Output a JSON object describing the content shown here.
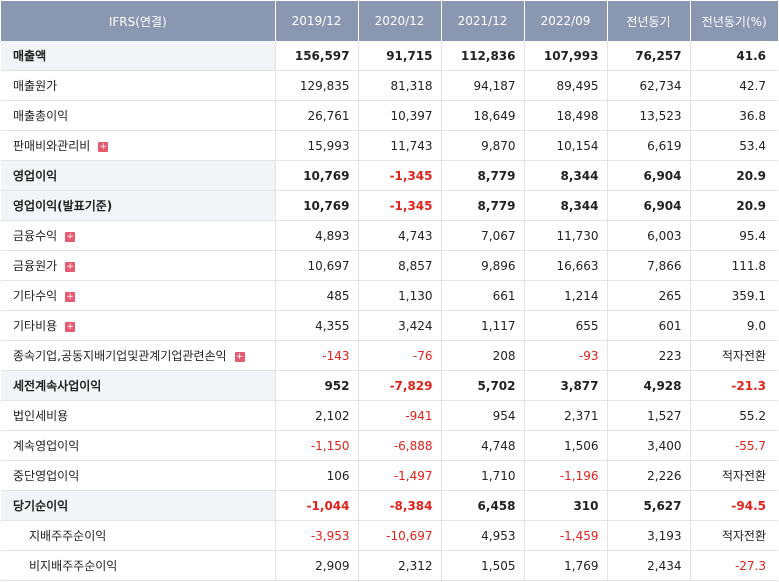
{
  "header": {
    "first": "IFRS(연결)",
    "cols": [
      "2019/12",
      "2020/12",
      "2021/12",
      "2022/09",
      "전년동기",
      "전년동기(%)"
    ]
  },
  "rows": [
    {
      "label": "매출액",
      "main": true,
      "expand": false,
      "sub": false,
      "values": [
        "156,597",
        "91,715",
        "112,836",
        "107,993",
        "76,257",
        "41.6"
      ],
      "neg": [
        false,
        false,
        false,
        false,
        false,
        false
      ]
    },
    {
      "label": "매출원가",
      "main": false,
      "expand": false,
      "sub": false,
      "values": [
        "129,835",
        "81,318",
        "94,187",
        "89,495",
        "62,734",
        "42.7"
      ],
      "neg": [
        false,
        false,
        false,
        false,
        false,
        false
      ]
    },
    {
      "label": "매출총이익",
      "main": false,
      "expand": false,
      "sub": false,
      "values": [
        "26,761",
        "10,397",
        "18,649",
        "18,498",
        "13,523",
        "36.8"
      ],
      "neg": [
        false,
        false,
        false,
        false,
        false,
        false
      ]
    },
    {
      "label": "판매비와관리비",
      "main": false,
      "expand": true,
      "sub": false,
      "values": [
        "15,993",
        "11,743",
        "9,870",
        "10,154",
        "6,619",
        "53.4"
      ],
      "neg": [
        false,
        false,
        false,
        false,
        false,
        false
      ]
    },
    {
      "label": "영업이익",
      "main": true,
      "expand": false,
      "sub": false,
      "values": [
        "10,769",
        "-1,345",
        "8,779",
        "8,344",
        "6,904",
        "20.9"
      ],
      "neg": [
        false,
        true,
        false,
        false,
        false,
        false
      ]
    },
    {
      "label": "영업이익(발표기준)",
      "main": true,
      "expand": false,
      "sub": false,
      "values": [
        "10,769",
        "-1,345",
        "8,779",
        "8,344",
        "6,904",
        "20.9"
      ],
      "neg": [
        false,
        true,
        false,
        false,
        false,
        false
      ]
    },
    {
      "label": "금융수익",
      "main": false,
      "expand": true,
      "sub": false,
      "values": [
        "4,893",
        "4,743",
        "7,067",
        "11,730",
        "6,003",
        "95.4"
      ],
      "neg": [
        false,
        false,
        false,
        false,
        false,
        false
      ]
    },
    {
      "label": "금융원가",
      "main": false,
      "expand": true,
      "sub": false,
      "values": [
        "10,697",
        "8,857",
        "9,896",
        "16,663",
        "7,866",
        "111.8"
      ],
      "neg": [
        false,
        false,
        false,
        false,
        false,
        false
      ]
    },
    {
      "label": "기타수익",
      "main": false,
      "expand": true,
      "sub": false,
      "values": [
        "485",
        "1,130",
        "661",
        "1,214",
        "265",
        "359.1"
      ],
      "neg": [
        false,
        false,
        false,
        false,
        false,
        false
      ]
    },
    {
      "label": "기타비용",
      "main": false,
      "expand": true,
      "sub": false,
      "values": [
        "4,355",
        "3,424",
        "1,117",
        "655",
        "601",
        "9.0"
      ],
      "neg": [
        false,
        false,
        false,
        false,
        false,
        false
      ]
    },
    {
      "label": "종속기업,공동지배기업및관계기업관련손익",
      "main": false,
      "expand": true,
      "sub": false,
      "values": [
        "-143",
        "-76",
        "208",
        "-93",
        "223",
        "적자전환"
      ],
      "neg": [
        true,
        true,
        false,
        true,
        false,
        false
      ]
    },
    {
      "label": "세전계속사업이익",
      "main": true,
      "expand": false,
      "sub": false,
      "values": [
        "952",
        "-7,829",
        "5,702",
        "3,877",
        "4,928",
        "-21.3"
      ],
      "neg": [
        false,
        true,
        false,
        false,
        false,
        true
      ]
    },
    {
      "label": "법인세비용",
      "main": false,
      "expand": false,
      "sub": false,
      "values": [
        "2,102",
        "-941",
        "954",
        "2,371",
        "1,527",
        "55.2"
      ],
      "neg": [
        false,
        true,
        false,
        false,
        false,
        false
      ]
    },
    {
      "label": "계속영업이익",
      "main": false,
      "expand": false,
      "sub": false,
      "values": [
        "-1,150",
        "-6,888",
        "4,748",
        "1,506",
        "3,400",
        "-55.7"
      ],
      "neg": [
        true,
        true,
        false,
        false,
        false,
        true
      ]
    },
    {
      "label": "중단영업이익",
      "main": false,
      "expand": false,
      "sub": false,
      "values": [
        "106",
        "-1,497",
        "1,710",
        "-1,196",
        "2,226",
        "적자전환"
      ],
      "neg": [
        false,
        true,
        false,
        true,
        false,
        false
      ]
    },
    {
      "label": "당기순이익",
      "main": true,
      "expand": false,
      "sub": false,
      "values": [
        "-1,044",
        "-8,384",
        "6,458",
        "310",
        "5,627",
        "-94.5"
      ],
      "neg": [
        true,
        true,
        false,
        false,
        false,
        true
      ]
    },
    {
      "label": "지배주주순이익",
      "main": false,
      "expand": false,
      "sub": true,
      "values": [
        "-3,953",
        "-10,697",
        "4,953",
        "-1,459",
        "3,193",
        "적자전환"
      ],
      "neg": [
        true,
        true,
        false,
        true,
        false,
        false
      ]
    },
    {
      "label": "비지배주주순이익",
      "main": false,
      "expand": false,
      "sub": true,
      "values": [
        "2,909",
        "2,312",
        "1,505",
        "1,769",
        "2,434",
        "-27.3"
      ],
      "neg": [
        false,
        false,
        false,
        false,
        false,
        true
      ]
    }
  ],
  "icons": {
    "expand": "plus-icon"
  },
  "colors": {
    "header_bg": "#8a97b1",
    "negative": "#e0231b",
    "main_label_bg": "#f3f4f8",
    "expand_icon": "#e55a6f"
  }
}
